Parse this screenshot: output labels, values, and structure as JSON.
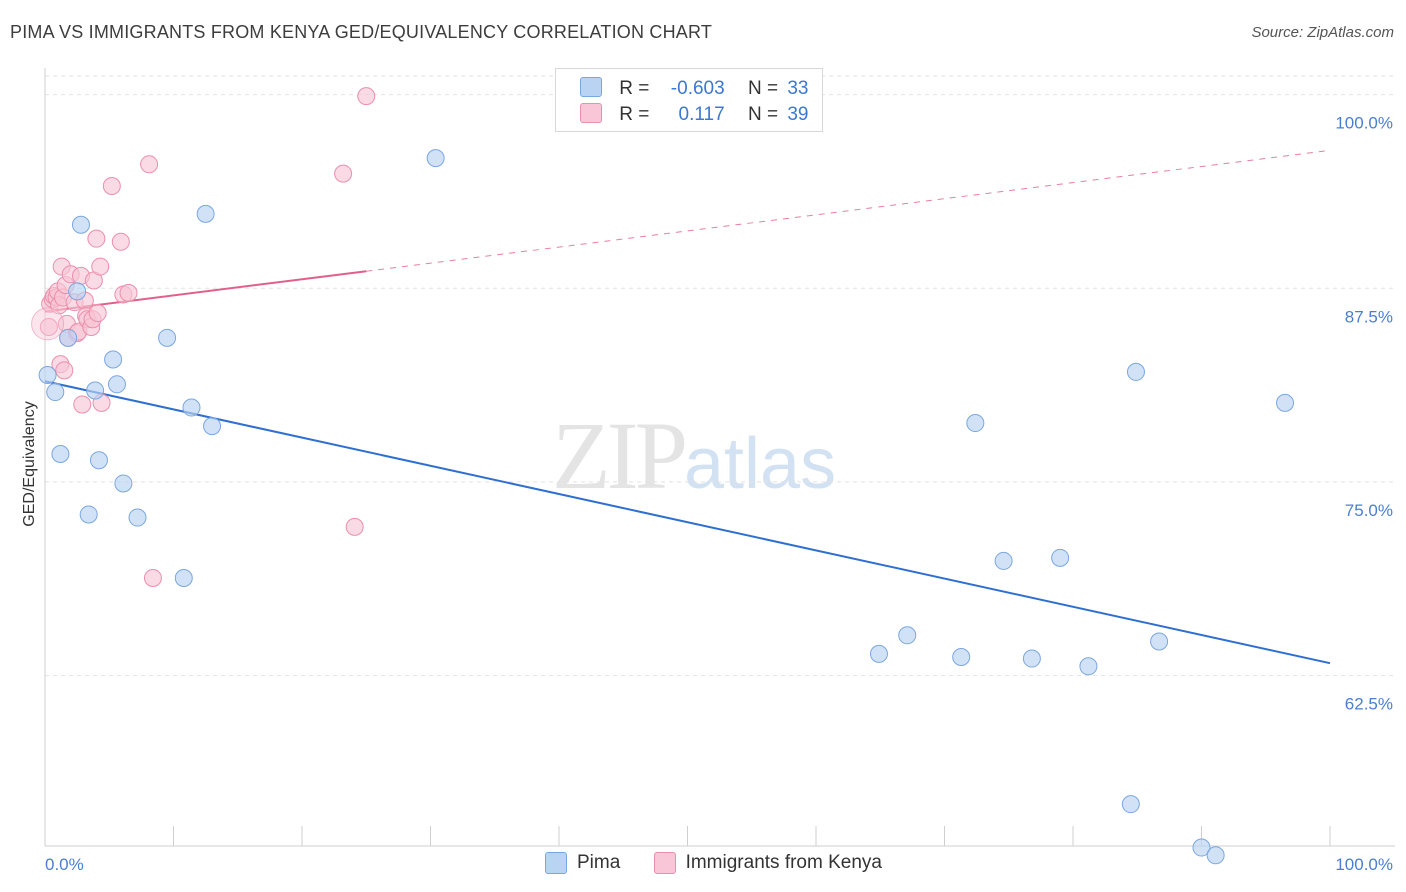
{
  "header": {
    "title": "PIMA VS IMMIGRANTS FROM KENYA GED/EQUIVALENCY CORRELATION CHART",
    "source": "Source: ZipAtlas.com"
  },
  "watermark": {
    "zip": "ZIP",
    "atlas": "atlas"
  },
  "legend": {
    "rows": [
      {
        "r_label": "R =",
        "r_value": "-0.603",
        "n_label": "N =",
        "n_value": "33"
      },
      {
        "r_label": "R =",
        "r_value": "0.117",
        "n_label": "N =",
        "n_value": "39"
      }
    ]
  },
  "bottom_legend": {
    "pima": "Pima",
    "kenya": "Immigrants from Kenya"
  },
  "colors": {
    "pima_fill": "#b9d3f2",
    "pima_stroke": "#7aa7e0",
    "pima_line": "#2f6fcf",
    "kenya_fill": "#f8c6d6",
    "kenya_stroke": "#ec8fad",
    "kenya_line": "#e0608a",
    "grid": "#e2e2e2",
    "axis_text": "#4a7fd0"
  },
  "chart_data": {
    "type": "scatter",
    "title": "PIMA VS IMMIGRANTS FROM KENYA GED/EQUIVALENCY CORRELATION CHART",
    "xlabel": "",
    "ylabel": "GED/Equivalency",
    "xlim": [
      0,
      100
    ],
    "ylim": [
      51.5,
      101.2
    ],
    "x_tick_labels": [
      "0.0%",
      "100.0%"
    ],
    "y_ticks": [
      62.5,
      75.0,
      87.5,
      100.0
    ],
    "y_tick_labels": [
      "62.5%",
      "75.0%",
      "87.5%",
      "100.0%"
    ],
    "grid": true,
    "legend_position": "top-center",
    "series": [
      {
        "name": "Pima",
        "r": -0.603,
        "n": 33,
        "trend": {
          "x0": 0,
          "y0": 81.5,
          "x1": 100,
          "y1": 63.3,
          "dashed_from": null
        },
        "points": [
          [
            0.2,
            81.9
          ],
          [
            0.8,
            80.8
          ],
          [
            1.2,
            76.8
          ],
          [
            1.8,
            84.3
          ],
          [
            2.5,
            87.3
          ],
          [
            2.8,
            91.6
          ],
          [
            3.4,
            72.9
          ],
          [
            3.9,
            80.9
          ],
          [
            4.2,
            76.4
          ],
          [
            5.3,
            82.9
          ],
          [
            5.6,
            81.3
          ],
          [
            6.1,
            74.9
          ],
          [
            7.2,
            72.7
          ],
          [
            9.5,
            84.3
          ],
          [
            10.8,
            68.8
          ],
          [
            11.4,
            79.8
          ],
          [
            12.5,
            92.3
          ],
          [
            13.0,
            78.6
          ],
          [
            30.4,
            95.9
          ],
          [
            64.9,
            63.9
          ],
          [
            67.1,
            65.1
          ],
          [
            71.3,
            63.7
          ],
          [
            72.4,
            78.8
          ],
          [
            74.6,
            69.9
          ],
          [
            76.8,
            63.6
          ],
          [
            79.0,
            70.1
          ],
          [
            81.2,
            63.1
          ],
          [
            84.5,
            54.2
          ],
          [
            84.9,
            82.1
          ],
          [
            86.7,
            64.7
          ],
          [
            90.0,
            51.4
          ],
          [
            91.1,
            50.9
          ],
          [
            96.5,
            80.1
          ]
        ]
      },
      {
        "name": "Immigrants from Kenya",
        "r": 0.117,
        "n": 39,
        "trend": {
          "x0": 0,
          "y0": 86.0,
          "x1": 100,
          "y1": 96.4,
          "dashed_from": 25
        },
        "points": [
          [
            0.3,
            85.0
          ],
          [
            0.4,
            86.5
          ],
          [
            0.6,
            86.8
          ],
          [
            0.7,
            87.0
          ],
          [
            0.9,
            86.9
          ],
          [
            1.0,
            87.3
          ],
          [
            1.1,
            86.4
          ],
          [
            1.2,
            82.6
          ],
          [
            1.3,
            88.9
          ],
          [
            1.4,
            86.9
          ],
          [
            1.5,
            82.2
          ],
          [
            1.6,
            87.7
          ],
          [
            1.7,
            85.2
          ],
          [
            1.8,
            84.3
          ],
          [
            2.0,
            88.4
          ],
          [
            2.3,
            86.6
          ],
          [
            2.5,
            84.6
          ],
          [
            2.6,
            84.7
          ],
          [
            2.8,
            88.3
          ],
          [
            2.9,
            80.0
          ],
          [
            3.1,
            86.7
          ],
          [
            3.2,
            85.7
          ],
          [
            3.3,
            85.5
          ],
          [
            3.6,
            85.0
          ],
          [
            3.7,
            85.5
          ],
          [
            3.8,
            88.0
          ],
          [
            4.0,
            90.7
          ],
          [
            4.1,
            85.9
          ],
          [
            4.3,
            88.9
          ],
          [
            4.4,
            80.1
          ],
          [
            5.2,
            94.1
          ],
          [
            5.9,
            90.5
          ],
          [
            6.1,
            87.1
          ],
          [
            6.5,
            87.2
          ],
          [
            8.1,
            95.5
          ],
          [
            8.4,
            68.8
          ],
          [
            23.2,
            94.9
          ],
          [
            24.1,
            72.1
          ],
          [
            25.0,
            99.9
          ]
        ]
      }
    ]
  }
}
